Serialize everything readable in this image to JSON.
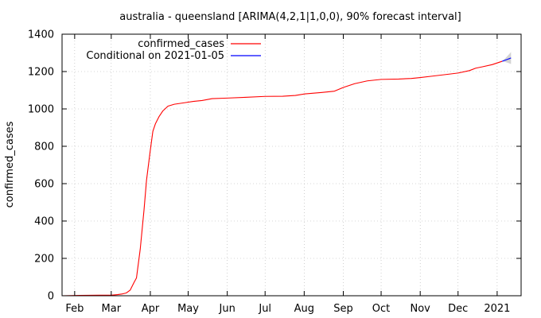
{
  "chart_data": {
    "type": "line",
    "title": "australia - queensland [ARIMA(4,2,1|1,0,0), 90% forecast interval]",
    "xlabel": "",
    "ylabel": "confirmed_cases",
    "ylim": [
      0,
      1400
    ],
    "yticks": [
      0,
      200,
      400,
      600,
      800,
      1000,
      1200,
      1400
    ],
    "xlim": [
      "2020-01-22",
      "2021-01-20"
    ],
    "xticks": [
      {
        "label": "Feb",
        "date": "2020-02-01"
      },
      {
        "label": "Mar",
        "date": "2020-03-01"
      },
      {
        "label": "Apr",
        "date": "2020-04-01"
      },
      {
        "label": "May",
        "date": "2020-05-01"
      },
      {
        "label": "Jun",
        "date": "2020-06-01"
      },
      {
        "label": "Jul",
        "date": "2020-07-01"
      },
      {
        "label": "Aug",
        "date": "2020-08-01"
      },
      {
        "label": "Sep",
        "date": "2020-09-01"
      },
      {
        "label": "Oct",
        "date": "2020-10-01"
      },
      {
        "label": "Nov",
        "date": "2020-11-01"
      },
      {
        "label": "Dec",
        "date": "2020-12-01"
      },
      {
        "label": "2021",
        "date": "2021-01-01"
      }
    ],
    "grid": true,
    "legend_position": "top-left",
    "series": [
      {
        "name": "confirmed_cases",
        "color": "#ff0000",
        "points": [
          [
            "2020-01-22",
            0
          ],
          [
            "2020-01-29",
            1
          ],
          [
            "2020-02-05",
            2
          ],
          [
            "2020-02-20",
            3
          ],
          [
            "2020-03-01",
            3
          ],
          [
            "2020-03-06",
            6
          ],
          [
            "2020-03-10",
            10
          ],
          [
            "2020-03-13",
            15
          ],
          [
            "2020-03-16",
            30
          ],
          [
            "2020-03-19",
            70
          ],
          [
            "2020-03-21",
            95
          ],
          [
            "2020-03-24",
            250
          ],
          [
            "2020-03-27",
            460
          ],
          [
            "2020-03-29",
            620
          ],
          [
            "2020-04-01",
            780
          ],
          [
            "2020-04-03",
            880
          ],
          [
            "2020-04-05",
            920
          ],
          [
            "2020-04-08",
            960
          ],
          [
            "2020-04-11",
            990
          ],
          [
            "2020-04-15",
            1015
          ],
          [
            "2020-04-20",
            1025
          ],
          [
            "2020-04-28",
            1033
          ],
          [
            "2020-05-05",
            1040
          ],
          [
            "2020-05-12",
            1045
          ],
          [
            "2020-05-20",
            1055
          ],
          [
            "2020-06-01",
            1058
          ],
          [
            "2020-06-15",
            1062
          ],
          [
            "2020-07-01",
            1067
          ],
          [
            "2020-07-15",
            1068
          ],
          [
            "2020-07-25",
            1072
          ],
          [
            "2020-08-01",
            1080
          ],
          [
            "2020-08-15",
            1088
          ],
          [
            "2020-08-25",
            1095
          ],
          [
            "2020-09-01",
            1115
          ],
          [
            "2020-09-10",
            1135
          ],
          [
            "2020-09-20",
            1150
          ],
          [
            "2020-10-01",
            1158
          ],
          [
            "2020-10-15",
            1160
          ],
          [
            "2020-10-25",
            1163
          ],
          [
            "2020-11-01",
            1168
          ],
          [
            "2020-11-10",
            1175
          ],
          [
            "2020-11-20",
            1183
          ],
          [
            "2020-12-01",
            1192
          ],
          [
            "2020-12-10",
            1205
          ],
          [
            "2020-12-15",
            1218
          ],
          [
            "2020-12-20",
            1225
          ],
          [
            "2020-12-28",
            1237
          ],
          [
            "2021-01-05",
            1255
          ]
        ]
      },
      {
        "name": "Conditional on 2021-01-05",
        "color": "#0000ff",
        "points": [
          [
            "2021-01-05",
            1255
          ],
          [
            "2021-01-07",
            1260
          ],
          [
            "2021-01-09",
            1265
          ],
          [
            "2021-01-11",
            1270
          ],
          [
            "2021-01-12",
            1273
          ]
        ],
        "interval_upper": [
          1255,
          1268,
          1282,
          1297,
          1305
        ],
        "interval_lower": [
          1255,
          1252,
          1248,
          1243,
          1240
        ],
        "interval_color": "#d3d3d3"
      }
    ]
  }
}
